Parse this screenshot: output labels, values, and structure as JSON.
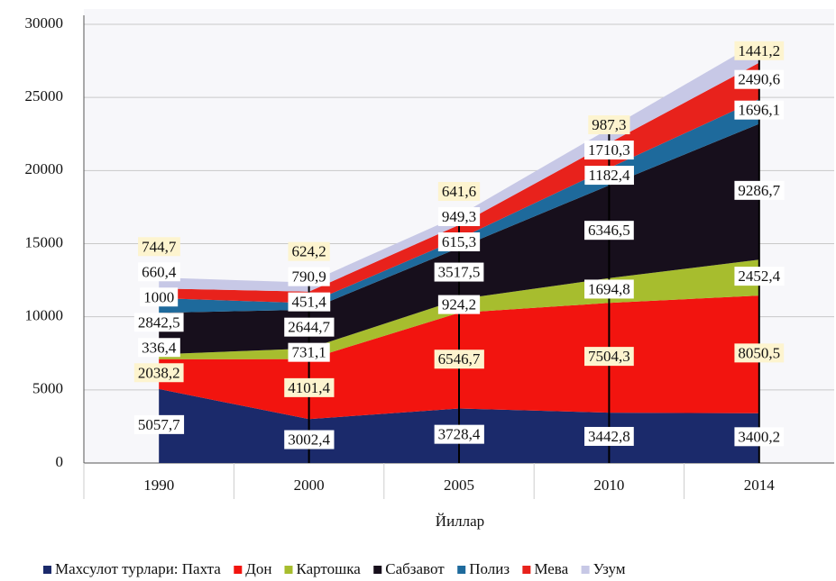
{
  "chart_data": {
    "type": "stacked_area",
    "x_label": "Йиллар",
    "categories": [
      "1990",
      "2000",
      "2005",
      "2010",
      "2014"
    ],
    "ylim": [
      0,
      30000
    ],
    "yticks": [
      0,
      5000,
      10000,
      15000,
      20000,
      25000,
      30000
    ],
    "grid": true,
    "series": [
      {
        "name": "Махсулот турлари: Пахта",
        "color": "#1b2a6b",
        "values": [
          5057.7,
          3002.4,
          3728.4,
          3442.8,
          3400.2
        ],
        "value_labels": [
          "5057,7",
          "3002,4",
          "3728,4",
          "3442,8",
          "3400,2"
        ]
      },
      {
        "name": "Дон",
        "color": "#f2140f",
        "values": [
          2038.2,
          4101.4,
          6546.7,
          7504.3,
          8050.5
        ],
        "value_labels": [
          "2038,2",
          "4101,4",
          "6546,7",
          "7504,3",
          "8050,5"
        ]
      },
      {
        "name": "Картошка",
        "color": "#a7bd2e",
        "values": [
          336.4,
          731.1,
          924.2,
          1694.8,
          2452.4
        ],
        "value_labels": [
          "336,4",
          "731,1",
          "924,2",
          "1694,8",
          "2452,4"
        ]
      },
      {
        "name": "Сабзавот",
        "color": "#170f1c",
        "values": [
          2842.5,
          2644.7,
          3517.5,
          6346.5,
          9286.7
        ],
        "value_labels": [
          "2842,5",
          "2644,7",
          "3517,5",
          "6346,5",
          "9286,7"
        ]
      },
      {
        "name": "Полиз",
        "color": "#1e6a9c",
        "values": [
          1000,
          451.4,
          615.3,
          1182.4,
          1696.1
        ],
        "value_labels": [
          "1000",
          "451,4",
          "615,3",
          "1182,4",
          "1696,1"
        ]
      },
      {
        "name": "Мева",
        "color": "#e8221c",
        "values": [
          660.4,
          790.9,
          949.3,
          1710.3,
          2490.6
        ],
        "value_labels": [
          "660,4",
          "790,9",
          "949,3",
          "1710,3",
          "2490,6"
        ]
      },
      {
        "name": "Узум",
        "color": "#c7c8e6",
        "values": [
          744.7,
          624.2,
          641.6,
          987.3,
          1441.2
        ],
        "value_labels": [
          "744,7",
          "624,2",
          "641,6",
          "987,3",
          "1441,2"
        ]
      }
    ]
  }
}
